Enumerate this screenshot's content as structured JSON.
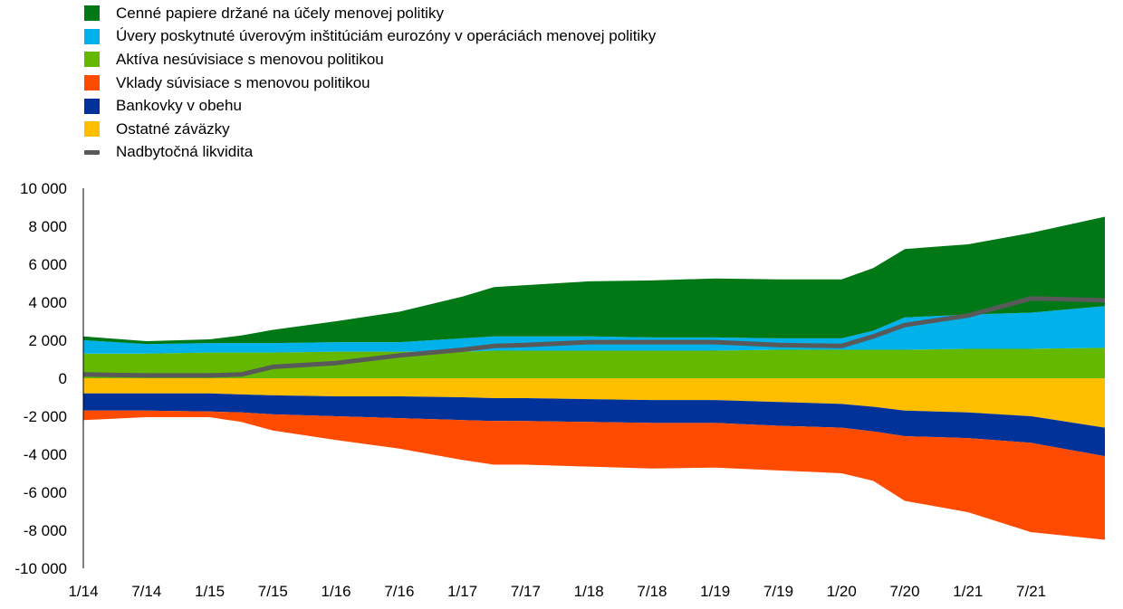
{
  "chart_data": {
    "type": "area",
    "title": "",
    "xlabel": "",
    "ylabel": "",
    "ylim": [
      -10000,
      10000
    ],
    "yticks": [
      10000,
      8000,
      6000,
      4000,
      2000,
      0,
      -2000,
      -4000,
      -6000,
      -8000,
      -10000
    ],
    "ytick_labels": [
      "10 000",
      "8 000",
      "6 000",
      "4 000",
      "2 000",
      "0",
      "-2 000",
      "-4 000",
      "-6 000",
      "-8 000",
      "-10 000"
    ],
    "xlim": [
      0,
      97
    ],
    "xticks": [
      0,
      6,
      12,
      18,
      24,
      30,
      36,
      42,
      48,
      54,
      60,
      66,
      72,
      78,
      84,
      90
    ],
    "xtick_labels": [
      "1/14",
      "7/14",
      "1/15",
      "7/15",
      "1/16",
      "7/16",
      "1/17",
      "7/17",
      "1/18",
      "7/18",
      "1/19",
      "7/19",
      "1/20",
      "7/20",
      "1/21",
      "7/21"
    ],
    "x_unit": "months since 1/14",
    "grid": false,
    "legend_position": "top-left",
    "x": [
      0,
      6,
      12,
      15,
      18,
      24,
      30,
      36,
      39,
      42,
      48,
      54,
      60,
      66,
      72,
      75,
      78,
      84,
      90,
      97
    ],
    "series": [
      {
        "name": "Cenné papiere držané na účely menovej politiky",
        "kind": "asset",
        "color": "#007816",
        "values": [
          200,
          150,
          200,
          400,
          700,
          1100,
          1600,
          2200,
          2600,
          2700,
          2900,
          3000,
          3100,
          3100,
          3100,
          3300,
          3600,
          3700,
          4200,
          4700
        ]
      },
      {
        "name": "Úvery poskytnuté úverovým inštitúciám eurozóny v operáciách menovej politiky",
        "kind": "asset",
        "color": "#00b1ea",
        "values": [
          700,
          500,
          500,
          500,
          500,
          500,
          500,
          700,
          750,
          750,
          750,
          700,
          700,
          600,
          600,
          1000,
          1700,
          1800,
          1900,
          2200
        ]
      },
      {
        "name": "Aktíva nesúvisiace s menovou politikou",
        "kind": "asset",
        "color": "#65b800",
        "values": [
          1300,
          1300,
          1350,
          1350,
          1350,
          1400,
          1400,
          1400,
          1450,
          1450,
          1450,
          1450,
          1450,
          1500,
          1500,
          1500,
          1500,
          1550,
          1550,
          1600
        ]
      },
      {
        "name": "Vklady súvisiace s menovou politikou",
        "kind": "liability",
        "color": "#ff4b00",
        "values": [
          500,
          350,
          300,
          500,
          850,
          1250,
          1600,
          2100,
          2300,
          2300,
          2350,
          2400,
          2350,
          2350,
          2400,
          2600,
          3400,
          3900,
          4700,
          4400
        ]
      },
      {
        "name": "Bankovky v obehu",
        "kind": "liability",
        "color": "#003299",
        "values": [
          900,
          900,
          950,
          950,
          1000,
          1050,
          1150,
          1200,
          1200,
          1200,
          1200,
          1200,
          1200,
          1250,
          1250,
          1300,
          1350,
          1350,
          1400,
          1500
        ]
      },
      {
        "name": "Ostatné záväzky",
        "kind": "liability",
        "color": "#ffbe00",
        "values": [
          800,
          800,
          800,
          850,
          900,
          950,
          950,
          1000,
          1050,
          1050,
          1100,
          1150,
          1150,
          1250,
          1350,
          1500,
          1700,
          1800,
          2000,
          2600
        ]
      },
      {
        "name": "Nadbytočná likvidita",
        "kind": "line",
        "color": "#595959",
        "values": [
          200,
          150,
          150,
          200,
          600,
          800,
          1200,
          1500,
          1700,
          1750,
          1900,
          1900,
          1900,
          1750,
          1700,
          2200,
          2800,
          3300,
          4200,
          4100
        ]
      }
    ]
  }
}
